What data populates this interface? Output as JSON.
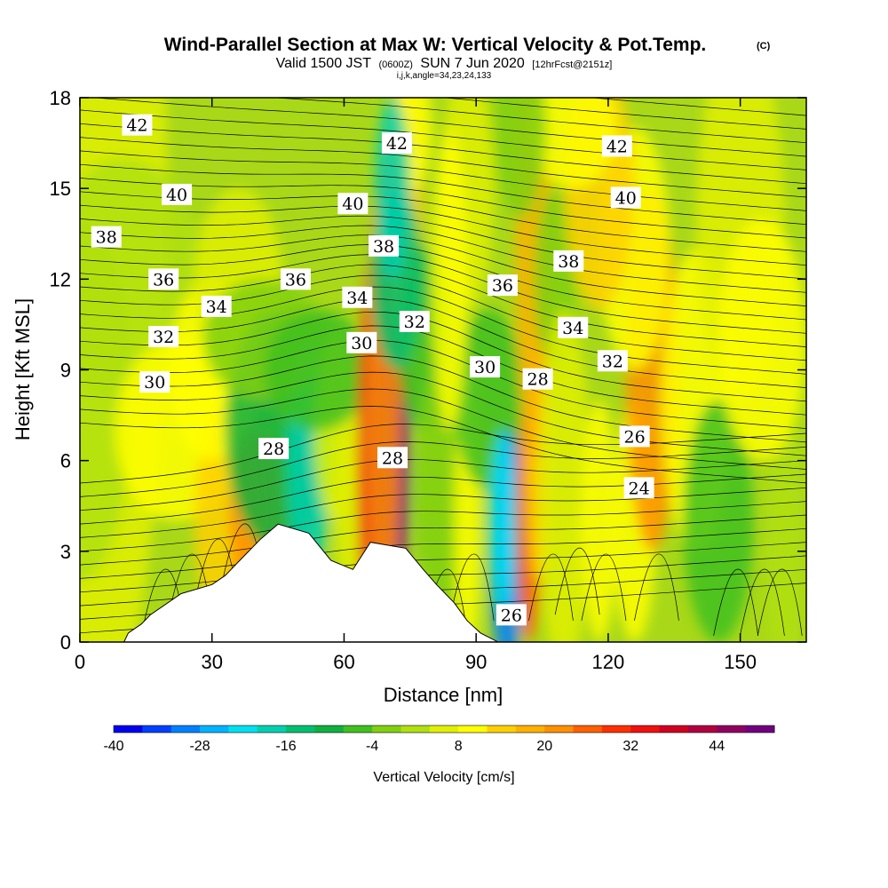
{
  "title": {
    "main": "Wind-Parallel Section at Max W: Vertical Velocity & Pot.Temp.",
    "copyright": "(C)",
    "valid_prefix": "Valid 1500 JST",
    "valid_utc": "(0600Z)",
    "valid_date": "SUN 7 Jun 2020",
    "forecast": "[12hrFcst@2151z]",
    "params": "i,j,k,angle=34,23,24,133"
  },
  "chart_data": {
    "type": "heatmap",
    "xlabel": "Distance [nm]",
    "ylabel": "Height [Kft MSL]",
    "xlim": [
      0,
      165
    ],
    "ylim": [
      0,
      18
    ],
    "x_ticks": [
      0,
      30,
      60,
      90,
      120,
      150
    ],
    "y_ticks": [
      0,
      3,
      6,
      9,
      12,
      15,
      18
    ],
    "grid": false,
    "colorbar": {
      "title": "Vertical Velocity [cm/s]",
      "min": -40,
      "max": 52,
      "step": 4,
      "tick_labels": [
        -40,
        -28,
        -16,
        -4,
        8,
        20,
        32,
        44
      ],
      "colors": [
        "#0000f0",
        "#0040ff",
        "#0080ff",
        "#00b4ff",
        "#00e0f0",
        "#00d0b0",
        "#00c070",
        "#10b040",
        "#40c020",
        "#80d010",
        "#b0e010",
        "#e0f000",
        "#ffff00",
        "#ffd000",
        "#ffb000",
        "#ff9000",
        "#ff6000",
        "#ff3000",
        "#f01010",
        "#d00020",
        "#b00040",
        "#900060",
        "#700080"
      ]
    },
    "terrain": [
      [
        10,
        0
      ],
      [
        11,
        0.3
      ],
      [
        14,
        0.6
      ],
      [
        16,
        0.9
      ],
      [
        23,
        1.6
      ],
      [
        30,
        1.9
      ],
      [
        33,
        2.2
      ],
      [
        37,
        2.8
      ],
      [
        41,
        3.4
      ],
      [
        45,
        3.9
      ],
      [
        52,
        3.6
      ],
      [
        57,
        2.7
      ],
      [
        62,
        2.4
      ],
      [
        66,
        3.3
      ],
      [
        74,
        3.1
      ],
      [
        78,
        2.4
      ],
      [
        81,
        1.9
      ],
      [
        85,
        1.3
      ],
      [
        88,
        0.7
      ],
      [
        91,
        0.3
      ],
      [
        95,
        0
      ]
    ],
    "contours": [
      {
        "level": 24,
        "label_at": [
          127,
          5.1
        ]
      },
      {
        "level": 26,
        "label_at": [
          126,
          6.8
        ]
      },
      {
        "level": 26,
        "label_at": [
          98,
          0.9
        ]
      },
      {
        "level": 28,
        "label_at": [
          44,
          6.4
        ]
      },
      {
        "level": 28,
        "label_at": [
          71,
          6.1
        ]
      },
      {
        "level": 28,
        "label_at": [
          104,
          8.7
        ]
      },
      {
        "level": 30,
        "label_at": [
          17,
          8.6
        ]
      },
      {
        "level": 30,
        "label_at": [
          64,
          9.9
        ]
      },
      {
        "level": 30,
        "label_at": [
          92,
          9.1
        ]
      },
      {
        "level": 32,
        "label_at": [
          19,
          10.1
        ]
      },
      {
        "level": 32,
        "label_at": [
          76,
          10.6
        ]
      },
      {
        "level": 32,
        "label_at": [
          121,
          9.3
        ]
      },
      {
        "level": 34,
        "label_at": [
          31,
          11.1
        ]
      },
      {
        "level": 34,
        "label_at": [
          63,
          11.4
        ]
      },
      {
        "level": 34,
        "label_at": [
          112,
          10.4
        ]
      },
      {
        "level": 36,
        "label_at": [
          19,
          12.0
        ]
      },
      {
        "level": 36,
        "label_at": [
          49,
          12.0
        ]
      },
      {
        "level": 36,
        "label_at": [
          96,
          11.8
        ]
      },
      {
        "level": 38,
        "label_at": [
          6,
          13.4
        ]
      },
      {
        "level": 38,
        "label_at": [
          69,
          13.1
        ]
      },
      {
        "level": 38,
        "label_at": [
          111,
          12.6
        ]
      },
      {
        "level": 40,
        "label_at": [
          22,
          14.8
        ]
      },
      {
        "level": 40,
        "label_at": [
          62,
          14.5
        ]
      },
      {
        "level": 40,
        "label_at": [
          124,
          14.7
        ]
      },
      {
        "level": 42,
        "label_at": [
          13,
          17.1
        ]
      },
      {
        "level": 42,
        "label_at": [
          72,
          16.5
        ]
      },
      {
        "level": 42,
        "label_at": [
          122,
          16.4
        ]
      }
    ]
  }
}
